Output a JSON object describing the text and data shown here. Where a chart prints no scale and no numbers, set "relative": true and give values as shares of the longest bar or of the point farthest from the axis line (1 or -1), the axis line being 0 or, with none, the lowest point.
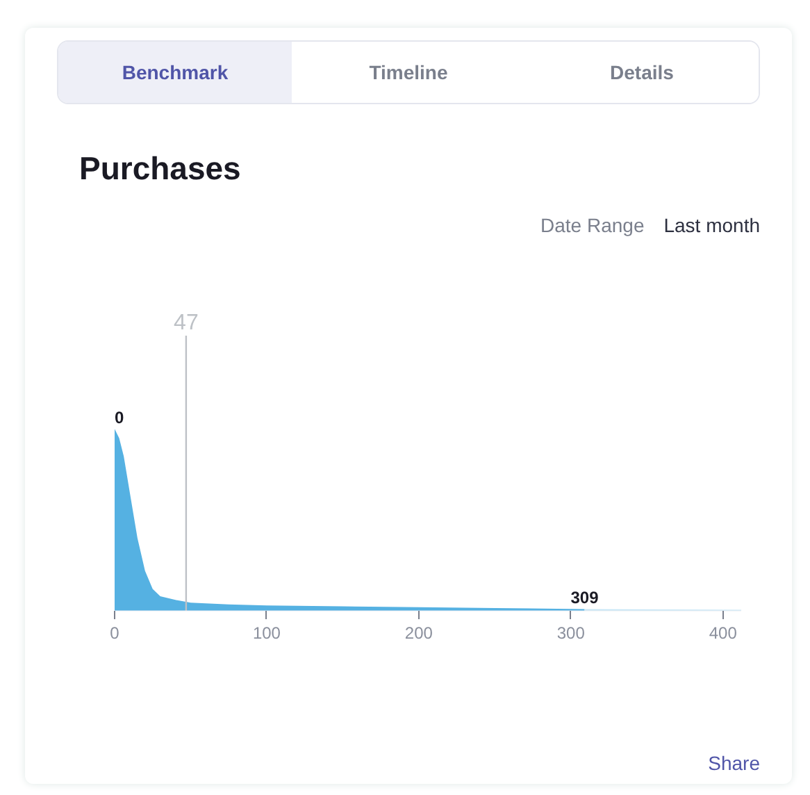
{
  "chart_data": {
    "type": "area",
    "title": "Purchases",
    "relative": true,
    "x": [
      0,
      3,
      6,
      10,
      15,
      20,
      25,
      30,
      40,
      50,
      75,
      100,
      150,
      200,
      250,
      309
    ],
    "series": [
      {
        "color": "#55b1e2",
        "values": [
          1.0,
          0.95,
          0.85,
          0.65,
          0.4,
          0.22,
          0.12,
          0.08,
          0.06,
          0.045,
          0.035,
          0.03,
          0.025,
          0.02,
          0.015,
          0.01
        ]
      },
      {
        "color": "#c6e6f6",
        "x": [
          309,
          360,
          412
        ],
        "values": [
          0.01,
          0.008,
          0.006
        ]
      }
    ],
    "xlim": [
      0,
      412
    ],
    "xticks": [
      0,
      100,
      200,
      300,
      400
    ],
    "grid": false,
    "ref_lines": [
      {
        "axis": "x",
        "value": 47,
        "label": "47",
        "color": "#bdc1c6"
      }
    ],
    "annotations": [
      "Benchmark",
      "Timeline",
      "Details",
      "Date Range",
      "Last month",
      {
        "text": "0",
        "x": 0,
        "y": 1.0
      },
      {
        "text": "309",
        "x": 309,
        "y": 0.01
      },
      "Share"
    ]
  }
}
